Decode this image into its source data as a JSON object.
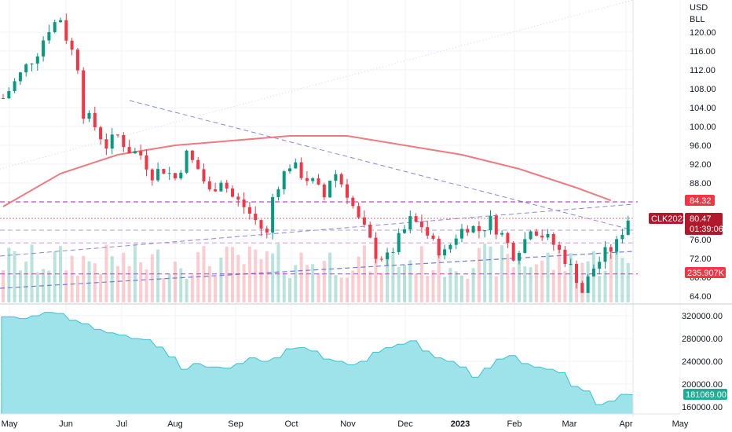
{
  "chart_data": [
    {
      "type": "candlestick",
      "symbol": "CLK2023",
      "currency": "USD",
      "unit": "BLL",
      "y_ticks": [
        "120.00",
        "116.00",
        "112.00",
        "108.00",
        "104.00",
        "100.00",
        "96.00",
        "92.00",
        "88.00",
        "84.00",
        "80.00",
        "76.00",
        "72.00",
        "68.00",
        "64.00"
      ],
      "ylim": [
        62,
        124
      ],
      "x_labels": [
        "May",
        "Jun",
        "Jul",
        "Aug",
        "Sep",
        "Oct",
        "Nov",
        "Dec",
        "2023",
        "Feb",
        "Mar",
        "Apr",
        "May"
      ],
      "last_price": "80.47",
      "countdown": "01:39:06",
      "ma_value": "84.32",
      "volume_label": "235.907K",
      "price_path": [
        [
          0,
          106
        ],
        [
          3,
          111
        ],
        [
          6,
          116
        ],
        [
          8,
          121
        ],
        [
          10,
          123
        ],
        [
          11,
          119
        ],
        [
          13,
          113
        ],
        [
          14,
          103
        ],
        [
          16,
          100
        ],
        [
          18,
          96
        ],
        [
          20,
          98
        ],
        [
          22,
          95
        ],
        [
          24,
          94
        ],
        [
          26,
          90
        ],
        [
          28,
          91
        ],
        [
          30,
          89
        ],
        [
          32,
          94
        ],
        [
          34,
          91
        ],
        [
          36,
          86
        ],
        [
          38,
          89
        ],
        [
          40,
          85
        ],
        [
          42,
          83
        ],
        [
          44,
          80
        ],
        [
          46,
          77
        ],
        [
          47,
          85
        ],
        [
          48,
          88
        ],
        [
          50,
          92
        ],
        [
          52,
          90
        ],
        [
          54,
          88
        ],
        [
          56,
          85
        ],
        [
          57,
          89
        ],
        [
          58,
          90
        ],
        [
          60,
          86
        ],
        [
          62,
          80
        ],
        [
          63,
          78
        ],
        [
          65,
          73
        ],
        [
          67,
          72
        ],
        [
          69,
          76
        ],
        [
          71,
          80
        ],
        [
          73,
          79
        ],
        [
          75,
          75
        ],
        [
          77,
          73
        ],
        [
          79,
          77
        ],
        [
          81,
          79
        ],
        [
          83,
          78
        ],
        [
          85,
          80
        ],
        [
          87,
          77
        ],
        [
          89,
          73
        ],
        [
          91,
          76
        ],
        [
          92,
          79
        ],
        [
          94,
          77
        ],
        [
          96,
          75
        ],
        [
          98,
          72
        ],
        [
          100,
          68
        ],
        [
          101,
          65
        ],
        [
          103,
          70
        ],
        [
          105,
          73
        ],
        [
          107,
          75
        ],
        [
          108,
          78
        ],
        [
          109,
          80.5
        ]
      ],
      "ma_path": [
        [
          0,
          83
        ],
        [
          10,
          90
        ],
        [
          20,
          94
        ],
        [
          30,
          96
        ],
        [
          40,
          97
        ],
        [
          50,
          98
        ],
        [
          60,
          98
        ],
        [
          70,
          96
        ],
        [
          80,
          94
        ],
        [
          90,
          91
        ],
        [
          100,
          87
        ],
        [
          106,
          84.3
        ]
      ]
    },
    {
      "type": "area",
      "y_ticks": [
        "320000.00",
        "280000.00",
        "240000.00",
        "200000.00",
        "160000.00"
      ],
      "ylim": [
        150000,
        345000
      ],
      "last_value": "181069.00",
      "values": [
        318000,
        318000,
        318000,
        315000,
        315000,
        320000,
        320000,
        326000,
        326000,
        324000,
        324000,
        312000,
        312000,
        306000,
        306000,
        296000,
        296000,
        290000,
        290000,
        286000,
        286000,
        280000,
        280000,
        278000,
        278000,
        265000,
        265000,
        248000,
        248000,
        226000,
        226000,
        236000,
        236000,
        230000,
        230000,
        230000,
        228000,
        228000,
        236000,
        236000,
        246000,
        246000,
        240000,
        240000,
        246000,
        246000,
        262000,
        262000,
        264000,
        264000,
        258000,
        258000,
        244000,
        244000,
        240000,
        240000,
        234000,
        234000,
        240000,
        240000,
        256000,
        256000,
        264000,
        264000,
        270000,
        270000,
        276000,
        276000,
        258000,
        258000,
        246000,
        246000,
        240000,
        240000,
        230000,
        230000,
        212000,
        212000,
        228000,
        228000,
        244000,
        244000,
        250000,
        250000,
        236000,
        236000,
        230000,
        230000,
        226000,
        226000,
        220000,
        220000,
        196000,
        196000,
        188000,
        188000,
        164000,
        164000,
        170000,
        170000,
        182000,
        182000,
        181069
      ]
    }
  ]
}
